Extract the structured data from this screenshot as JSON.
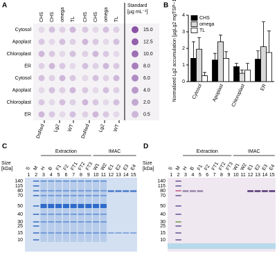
{
  "panel_a": {
    "letter": "A",
    "columns": [
      "CHS",
      "CHS",
      "omega",
      "TL",
      "CHS",
      "CHS",
      "omega",
      "TL"
    ],
    "standard_header": [
      "Standard",
      "[µg mL⁻¹]"
    ],
    "rows": [
      "Cytosol",
      "Apoplast",
      "Chloroplast",
      "ER",
      "Cytosol",
      "Apoplast",
      "Chloroplast",
      "ER"
    ],
    "standards": [
      "15.0",
      "12.5",
      "10.0",
      "8.0",
      "6.0",
      "4.0",
      "2.0",
      "0.5"
    ],
    "groups": [
      "DsRed",
      "Lg2",
      "WT",
      "DsRed",
      "Lg2",
      "WT"
    ]
  },
  "chart_data": {
    "type": "bar",
    "panel_label": "B",
    "ylabel": "Normalized Lg2 accumulation [µgLg2 mgTSP−1]",
    "categories": [
      "Cytosol",
      "Apoplast",
      "Chloroplast",
      "ER"
    ],
    "series": [
      {
        "name": "CHS",
        "color": "#000000",
        "values": [
          1.4,
          1.3,
          0.9,
          1.35
        ],
        "errors": [
          1.0,
          0.4,
          0.2,
          0.5
        ]
      },
      {
        "name": "omega",
        "color": "#d9d9d9",
        "values": [
          1.95,
          2.4,
          0.5,
          2.1
        ],
        "errors": [
          0.7,
          0.4,
          0.2,
          1.5
        ]
      },
      {
        "name": "TL",
        "color": "#ffffff",
        "values": [
          0.35,
          1.4,
          0.7,
          1.75
        ],
        "errors": [
          0.2,
          0.4,
          0.4,
          1.3
        ]
      }
    ],
    "ylim": [
      0,
      4
    ],
    "yticks": [
      0,
      1,
      2,
      3,
      4
    ],
    "legend": "upper-left"
  },
  "panel_c": {
    "letter": "C",
    "headers": [
      "Extraction",
      "IMAC"
    ],
    "lanes": [
      "S",
      "M",
      "H",
      "B",
      "F1",
      "F2",
      "FT1",
      "FT2",
      "FT3",
      "W1",
      "W2",
      "E1",
      "E2",
      "E3",
      "E4"
    ],
    "lane_numbers": [
      1,
      2,
      3,
      4,
      5,
      6,
      7,
      8,
      9,
      10,
      11,
      12,
      13,
      14,
      15
    ],
    "size_label": [
      "Size",
      "[kDa]"
    ],
    "sizes": [
      140,
      115,
      80,
      70,
      50,
      40,
      30,
      25,
      15,
      10
    ]
  },
  "panel_d": {
    "letter": "D",
    "headers": [
      "Extraction",
      "IMAC"
    ],
    "lanes": [
      "S",
      "M",
      "H",
      "B",
      "F1",
      "F2",
      "FT1",
      "FT2",
      "FT3",
      "W1",
      "W2",
      "E1",
      "E2",
      "E3",
      "E4"
    ],
    "lane_numbers": [
      1,
      2,
      3,
      4,
      5,
      6,
      7,
      8,
      9,
      10,
      11,
      12,
      13,
      14,
      15
    ],
    "size_label": [
      "Size",
      "[kDa]"
    ],
    "sizes": [
      140,
      115,
      80,
      70,
      50,
      40,
      30,
      25,
      15,
      10
    ]
  }
}
